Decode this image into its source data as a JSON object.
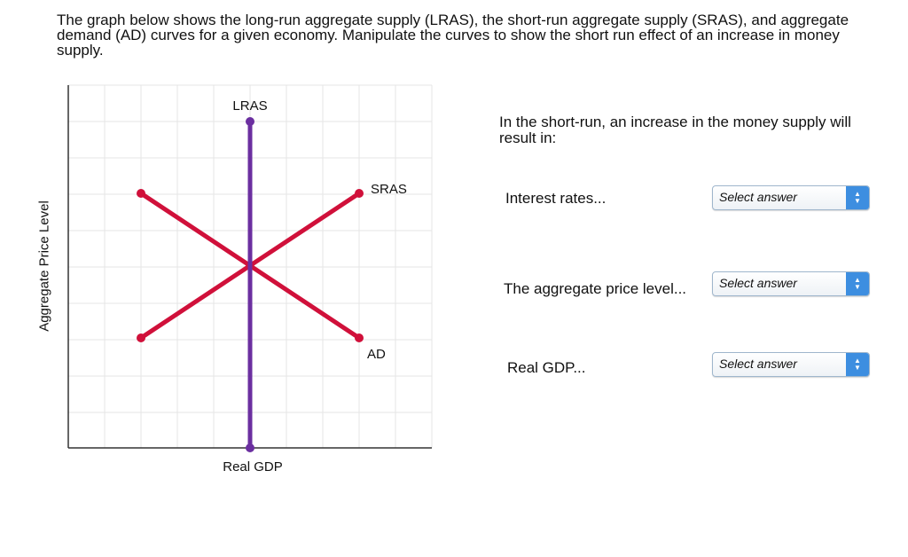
{
  "prompt": "The graph below shows the long-run aggregate supply (LRAS), the short-run aggregate supply (SRAS), and aggregate demand (AD) curves for a given economy. Manipulate the curves to show the short run effect of an increase in money supply.",
  "graph": {
    "y_axis_label": "Aggregate Price Level",
    "x_axis_label": "Real GDP",
    "curve_labels": {
      "lras": "LRAS",
      "sras": "SRAS",
      "ad": "AD"
    },
    "colors": {
      "lras": "#6b2fa0",
      "sras": "#d0103a",
      "ad": "#d0103a",
      "grid": "#e6e6e6",
      "axis": "#333333"
    }
  },
  "question": {
    "text": "In the short-run, an increase in the money supply will result in:",
    "rows": [
      {
        "label": "Interest rates...",
        "selected": "Select answer"
      },
      {
        "label": "The aggregate price level...",
        "selected": "Select answer"
      },
      {
        "label": "Real GDP...",
        "selected": "Select answer"
      }
    ]
  },
  "icons": {
    "select_arrows": "up-down-chevron-icon"
  }
}
